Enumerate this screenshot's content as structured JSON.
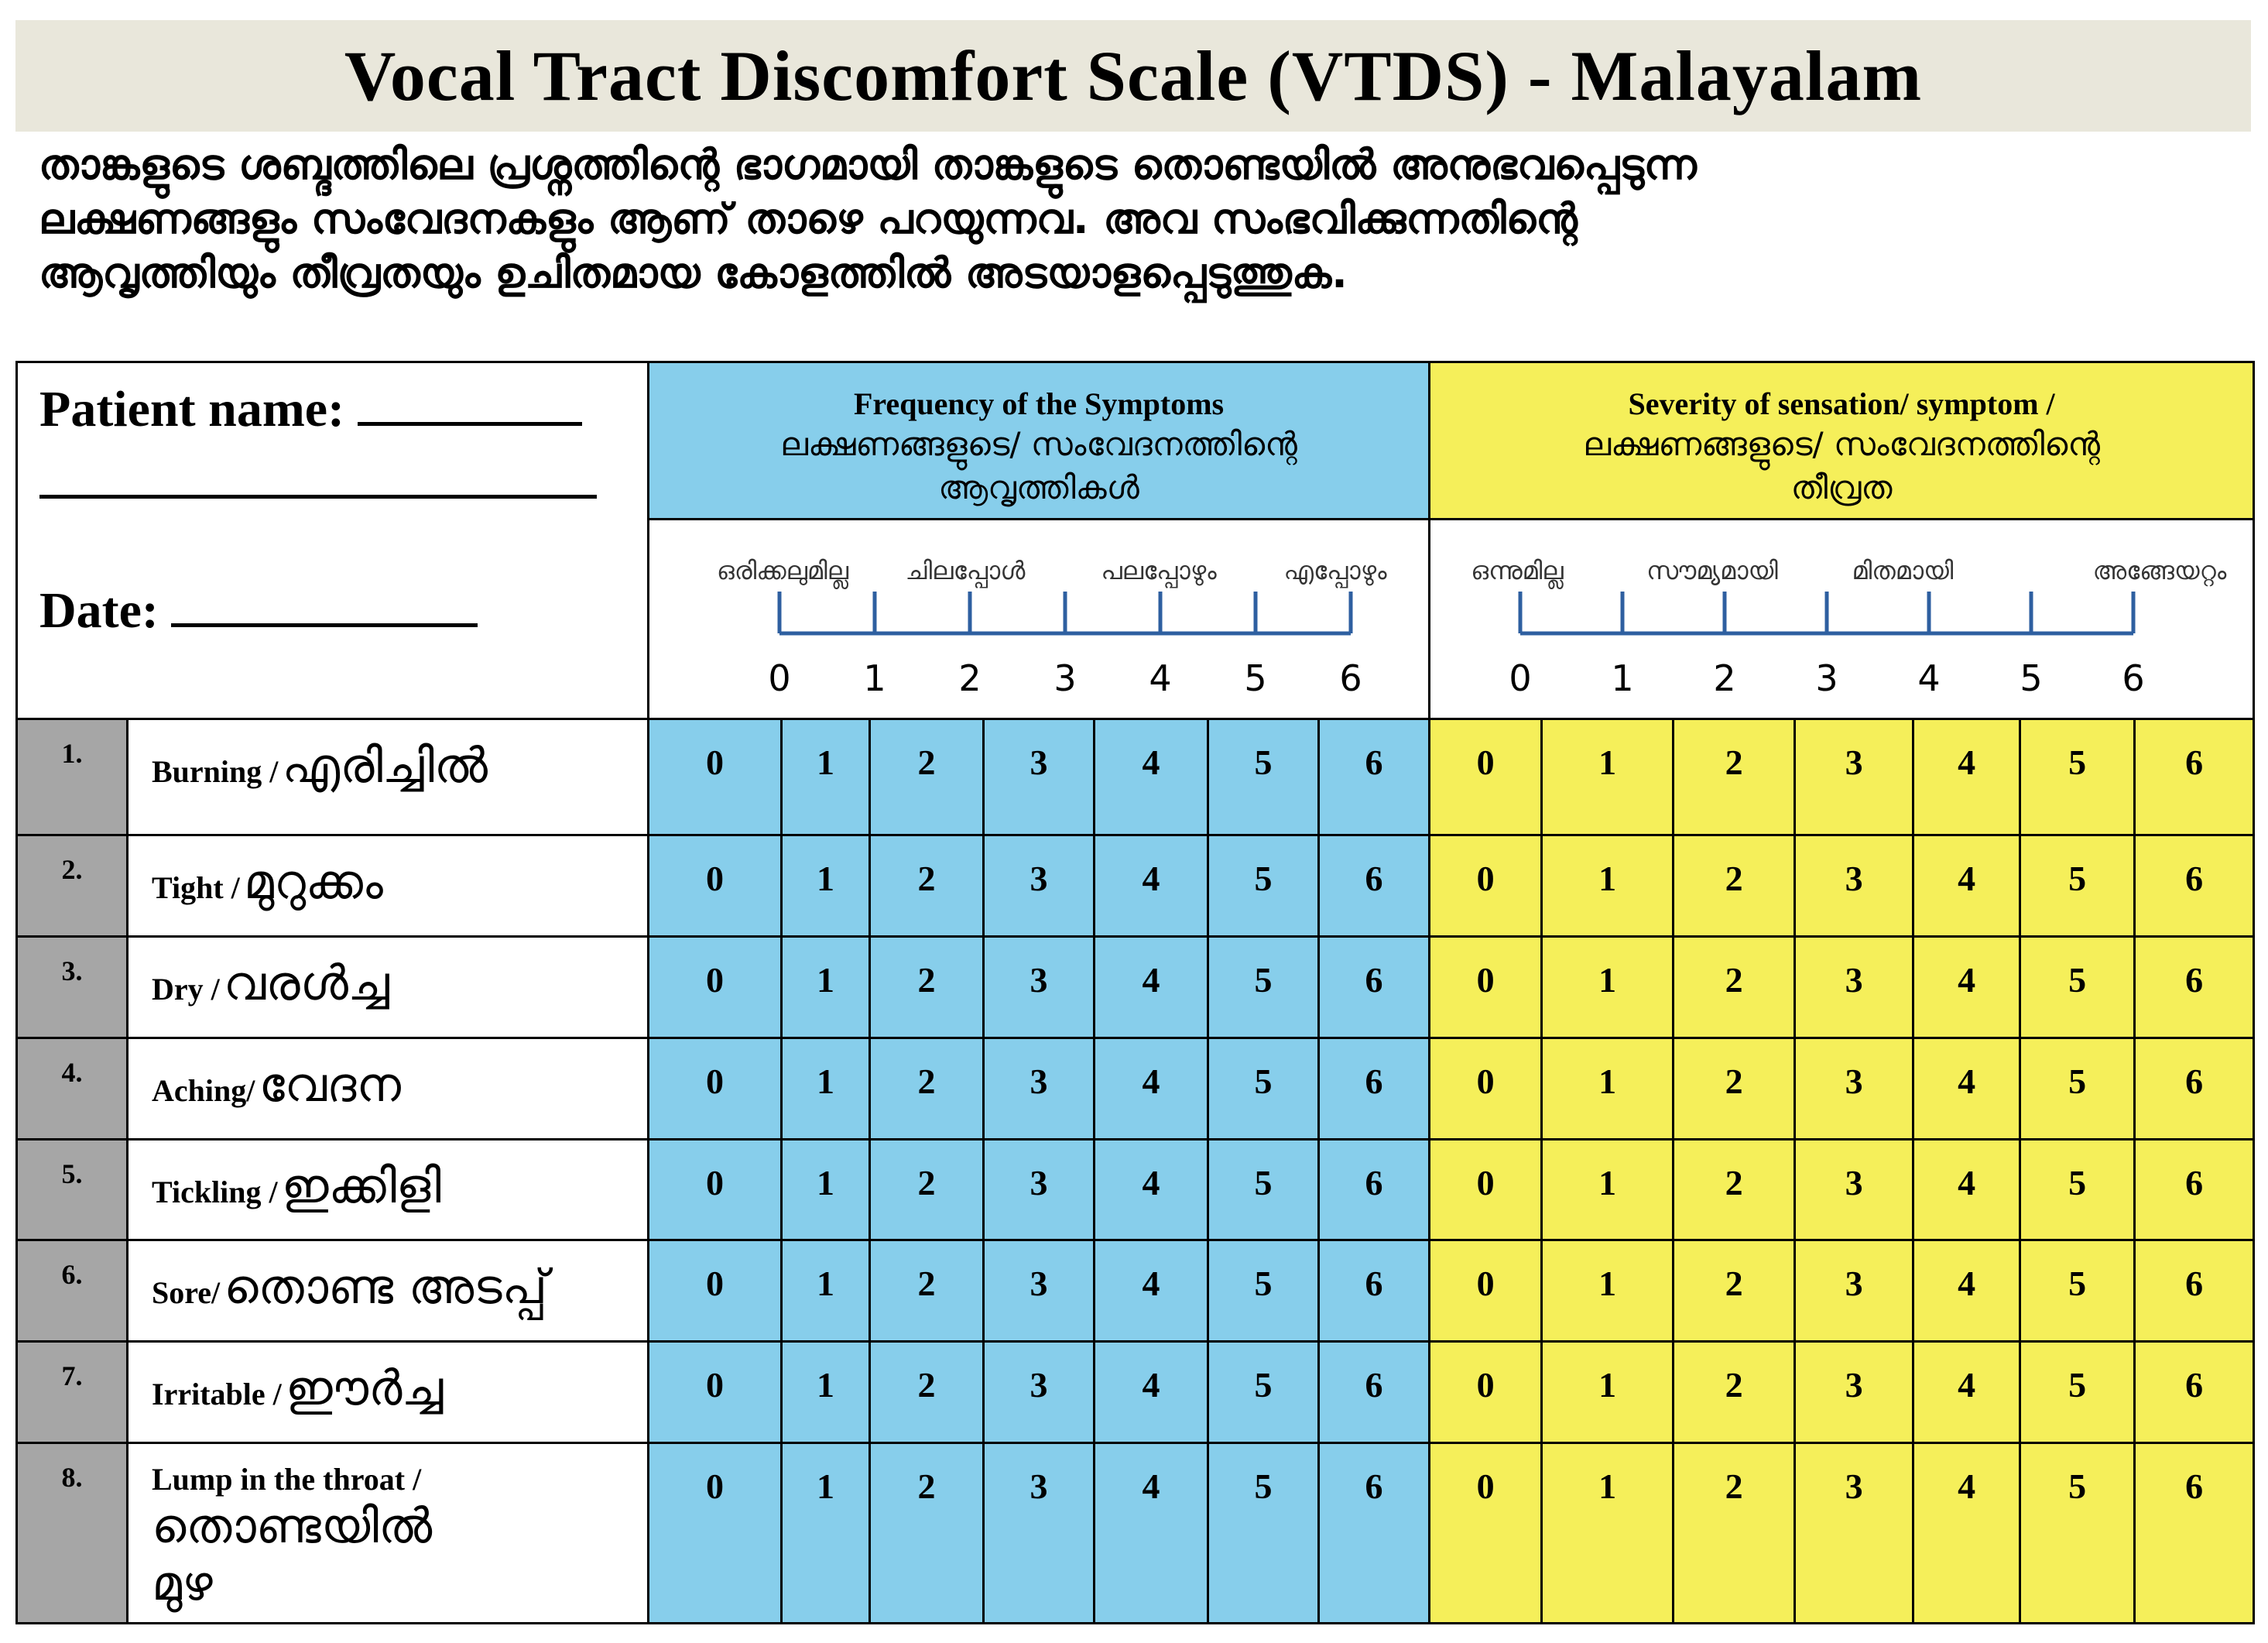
{
  "title": "Vocal Tract Discomfort Scale (VTDS) - Malayalam",
  "instructions": [
    "താങ്കളുടെ ശബ്ദത്തിലെ പ്രശ്നത്തിന്റെ ഭാഗമായി താങ്കളുടെ തൊണ്ടയിൽ അനുഭവപ്പെടുന്ന",
    "ലക്ഷണങ്ങളും സംവേദനകളും ആണ് താഴെ പറയുന്നവ. അവ സംഭവിക്കുന്നതിന്റെ",
    "ആവൃത്തിയും തീവ്രതയും ഉചിതമായ കോളത്തിൽ അടയാളപ്പെടുത്തുക."
  ],
  "form": {
    "patient_name_label": "Patient name:",
    "date_label": "Date:"
  },
  "frequency": {
    "title_en": "Frequency  of the Symptoms",
    "title_ml": "ലക്ഷണങ്ങളുടെ/  സംവേദനത്തിന്റെ",
    "title_ml2": "ആവൃത്തികൾ",
    "anchors": [
      "ഒരിക്കലുമില്ല",
      "ചിലപ്പോൾ",
      "പലപ്പോഴും",
      "എപ്പോഴും"
    ],
    "ticks": [
      "0",
      "1",
      "2",
      "3",
      "4",
      "5",
      "6"
    ],
    "color": "#87ceeb"
  },
  "severity": {
    "title_en": "Severity of sensation/ symptom  /",
    "title_ml": "ലക്ഷണങ്ങളുടെ/  സംവേദനത്തിന്റെ",
    "title_ml2": "തീവ്രത",
    "anchors": [
      "ഒന്നുമില്ല",
      "സൗമ്യമായി",
      "മിതമായി",
      "അങ്ങേയറ്റം"
    ],
    "ticks": [
      "0",
      "1",
      "2",
      "3",
      "4",
      "5",
      "6"
    ],
    "color": "#f5ef5a"
  },
  "scores": [
    "0",
    "1",
    "2",
    "3",
    "4",
    "5",
    "6"
  ],
  "items": [
    {
      "num": "1.",
      "en": "Burning /",
      "ml": "എരിച്ചിൽ"
    },
    {
      "num": "2.",
      "en": "Tight /",
      "ml": "മുറുക്കം"
    },
    {
      "num": "3.",
      "en": "Dry /",
      "ml": "വരൾച്ച"
    },
    {
      "num": "4.",
      "en": "Aching/",
      "ml": "വേദന"
    },
    {
      "num": "5.",
      "en": "Tickling /",
      "ml": "ഇക്കിളി"
    },
    {
      "num": "6.",
      "en": "Sore/",
      "ml": "തൊണ്ട  അടപ്പ്"
    },
    {
      "num": "7.",
      "en": "Irritable /",
      "ml": "ഈർച്ച"
    },
    {
      "num": "8.",
      "en": "Lump in the throat /",
      "ml": "തൊണ്ടയിൽ",
      "ml2": "മുഴ"
    }
  ]
}
